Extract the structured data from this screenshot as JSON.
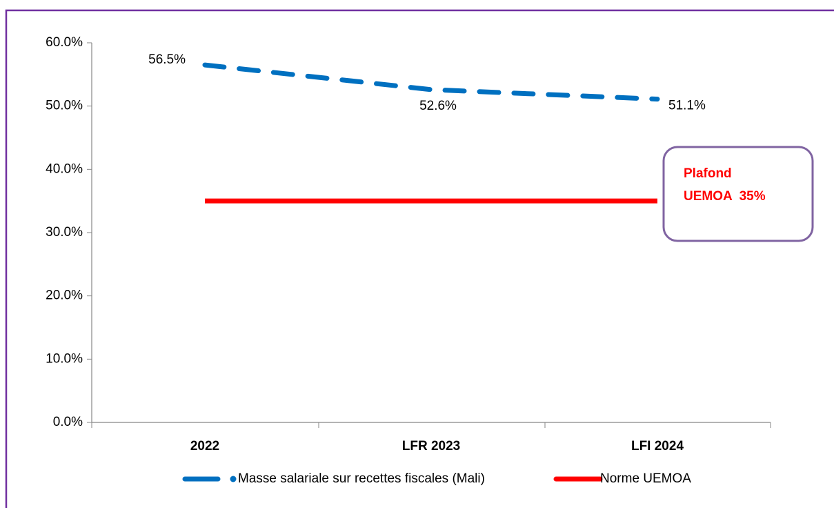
{
  "chart_data": {
    "type": "line",
    "categories": [
      "2022",
      "LFR 2023",
      "LFI 2024"
    ],
    "series": [
      {
        "name": "Masse salariale sur recettes fiscales (Mali)",
        "color": "#0070c0",
        "style": "dashed",
        "values": [
          56.5,
          52.6,
          51.1
        ],
        "value_labels": [
          "56.5%",
          "52.6%",
          "51.1%"
        ]
      },
      {
        "name": "Norme UEMOA",
        "color": "#ff0000",
        "style": "solid",
        "values": [
          35,
          35,
          35
        ]
      }
    ],
    "ylim": [
      0,
      60
    ],
    "yticks": [
      {
        "value": 0,
        "label": "0.0%"
      },
      {
        "value": 10,
        "label": "10.0%"
      },
      {
        "value": 20,
        "label": "20.0%"
      },
      {
        "value": 30,
        "label": "30.0%"
      },
      {
        "value": 40,
        "label": "40.0%"
      },
      {
        "value": 50,
        "label": "50.0%"
      },
      {
        "value": 60,
        "label": "60.0%"
      }
    ],
    "annotation": [
      "Plafond",
      "UEMOA  35%"
    ],
    "grid": false,
    "legend": "bottom"
  }
}
